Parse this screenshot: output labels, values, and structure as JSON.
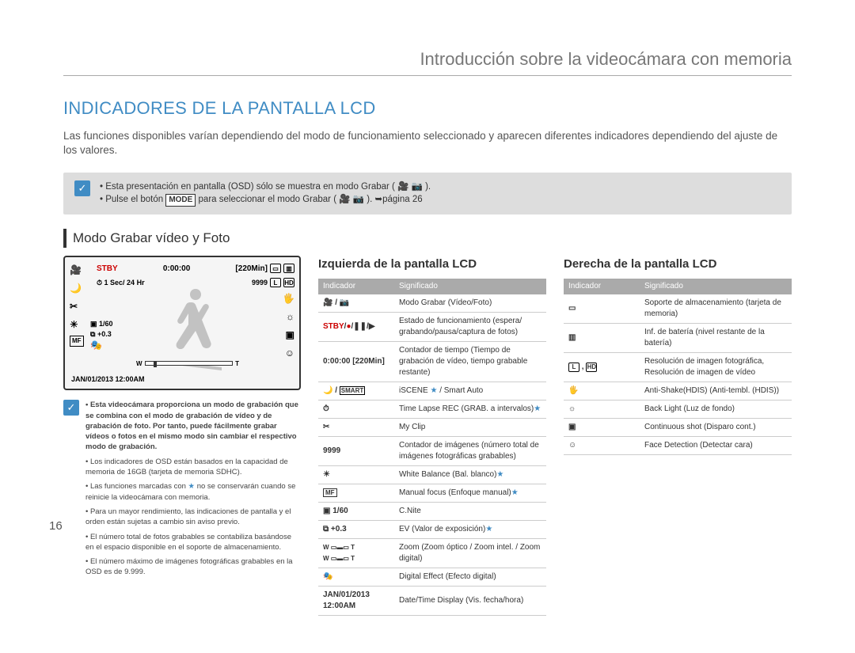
{
  "page_number": "16",
  "chapter_title": "Introducción sobre la videocámara con memoria",
  "main_title": "INDICADORES DE LA PANTALLA LCD",
  "intro": "Las funciones disponibles varían dependiendo del modo de funcionamiento seleccionado y aparecen diferentes indicadores dependiendo del ajuste de los valores.",
  "info_bullets": {
    "b1": "Esta presentación en pantalla (OSD) sólo se muestra en modo Grabar ( 🎥 📷 ).",
    "b2_pre": "Pulse el botón ",
    "b2_mode": "MODE",
    "b2_post": " para seleccionar el modo Grabar ( 🎥 📷 ). ➥página 26"
  },
  "section_title": "Modo Grabar vídeo y Foto",
  "lcd": {
    "stby": "STBY",
    "time": "0:00:00",
    "remain": "[220Min]",
    "interval": "1 Sec/ 24 Hr",
    "img_count": "9999",
    "shutter": "1/60",
    "ev": "+0.3",
    "date": "JAN/01/2013 12:00AM",
    "card": "▭",
    "battery": "▥",
    "resP": "L",
    "resHD": "HD"
  },
  "lcd_notes": [
    {
      "bold": true,
      "text": "Esta videocámara proporciona un modo de grabación que se combina con el modo de grabación de vídeo y de grabación de foto. Por tanto, puede fácilmente grabar vídeos o fotos en el mismo modo sin cambiar el respectivo modo de grabación."
    },
    {
      "bold": false,
      "text": "Los indicadores de OSD están basados en la capacidad de memoria de 16GB (tarjeta de memoria SDHC)."
    },
    {
      "bold": false,
      "text": "Las funciones marcadas con ★ no se conservarán cuando se reinicie la videocámara con memoria."
    },
    {
      "bold": false,
      "text": "Para un mayor rendimiento, las indicaciones de pantalla y el orden están sujetas a cambio sin aviso previo."
    },
    {
      "bold": false,
      "text": "El número total de fotos grabables se contabiliza basándose en el espacio disponible en el soporte de almacenamiento."
    },
    {
      "bold": false,
      "text": "El número máximo de imágenes fotográficas grabables en la OSD es de 9.999."
    }
  ],
  "left_table": {
    "title": "Izquierda de la pantalla LCD",
    "head_ind": "Indicador",
    "head_sig": "Significado",
    "rows": [
      {
        "ind": "🎥 / 📷",
        "sig": "Modo Grabar (Vídeo/Foto)"
      },
      {
        "ind_html": "<span class='stby'>STBY</span>/<span class='star-red'>●</span>/❚❚/▶",
        "sig": "Estado de funcionamiento (espera/ grabando/pausa/captura de fotos)"
      },
      {
        "ind": "0:00:00 [220Min]",
        "sig": "Contador de tiempo (Tiempo de grabación de vídeo, tiempo grabable restante)"
      },
      {
        "ind_html": "🌙 / <span style='font-size:8px;border:1px solid #000;padding:0 1px'>SMART</span>",
        "sig_html": "iSCENE <span class='star'>★</span> / Smart Auto"
      },
      {
        "ind": "⏱",
        "sig_html": "Time Lapse REC (GRAB. a intervalos)<span class='star'>★</span>"
      },
      {
        "ind": "✂",
        "sig": "My Clip"
      },
      {
        "ind": "9999",
        "sig": "Contador de imágenes (número total de imágenes fotográficas grabables)"
      },
      {
        "ind": "☀",
        "sig_html": "White Balance (Bal. blanco)<span class='star'>★</span>"
      },
      {
        "ind_html": "<span style='border:1px solid #333;padding:0 2px;font-size:8px'>MF</span>",
        "sig_html": "Manual focus (Enfoque manual)<span class='star'>★</span>"
      },
      {
        "ind": "▣ 1/60",
        "sig": "C.Nite"
      },
      {
        "ind": "⧉ +0.3",
        "sig_html": "EV (Valor de exposición)<span class='star'>★</span>"
      },
      {
        "ind_html": "<span style='font-size:8px'>W ▭▬▭ T<br>W ▭▬▭ T</span>",
        "sig": "Zoom (Zoom óptico / Zoom intel. / Zoom digital)"
      },
      {
        "ind": "🎭",
        "sig": "Digital Effect (Efecto digital)"
      },
      {
        "ind": "JAN/01/2013 12:00AM",
        "sig": "Date/Time Display (Vis. fecha/hora)"
      }
    ]
  },
  "right_table": {
    "title": "Derecha de la pantalla LCD",
    "head_ind": "Indicador",
    "head_sig": "Significado",
    "rows": [
      {
        "ind": "▭",
        "sig": "Soporte de almacenamiento (tarjeta de memoria)"
      },
      {
        "ind": "▥",
        "sig": "Inf. de batería (nivel restante de la batería)"
      },
      {
        "ind_html": "<span class='iconsq'>L</span> , <span class='iconsq'>HD</span>",
        "sig": "Resolución de imagen fotográfica, Resolución de imagen de vídeo"
      },
      {
        "ind": "🖐",
        "sig": "Anti-Shake(HDIS) (Anti-tembl. (HDIS))"
      },
      {
        "ind": "☼",
        "sig": "Back Light (Luz de fondo)"
      },
      {
        "ind": "▣",
        "sig": "Continuous shot (Disparo cont.)"
      },
      {
        "ind": "☺",
        "sig": "Face Detection (Detectar cara)"
      }
    ]
  },
  "styling": {
    "accent_color": "#408cc4",
    "stby_color": "#c00000",
    "header_bg": "#aaaaaa",
    "info_bg": "#dddddd",
    "body_width": 1080,
    "body_height": 825
  }
}
